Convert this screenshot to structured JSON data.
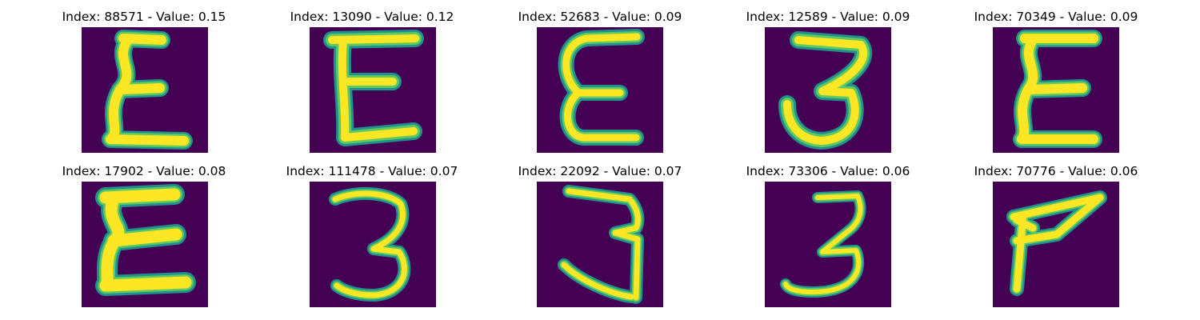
{
  "colors": {
    "background": "#440154",
    "stroke_edge": "#21918c",
    "stroke_mid": "#5ec962",
    "stroke_core": "#fde725"
  },
  "panels": [
    {
      "title": "Index: 88571 - Value: 0.15",
      "glyph": "E-wavy"
    },
    {
      "title": "Index: 13090 - Value: 0.12",
      "glyph": "E"
    },
    {
      "title": "Index: 52683 - Value: 0.09",
      "glyph": "E-round"
    },
    {
      "title": "Index: 12589 - Value: 0.09",
      "glyph": "3"
    },
    {
      "title": "Index: 70349 - Value: 0.09",
      "glyph": "E-wavy"
    },
    {
      "title": "Index: 17902 - Value: 0.08",
      "glyph": "E-bold"
    },
    {
      "title": "Index: 111478 - Value: 0.07",
      "glyph": "3"
    },
    {
      "title": "Index: 22092 - Value: 0.07",
      "glyph": "3-tall"
    },
    {
      "title": "Index: 73306 - Value: 0.06",
      "glyph": "3-thin"
    },
    {
      "title": "Index: 70776 - Value: 0.06",
      "glyph": "F-slant"
    }
  ]
}
